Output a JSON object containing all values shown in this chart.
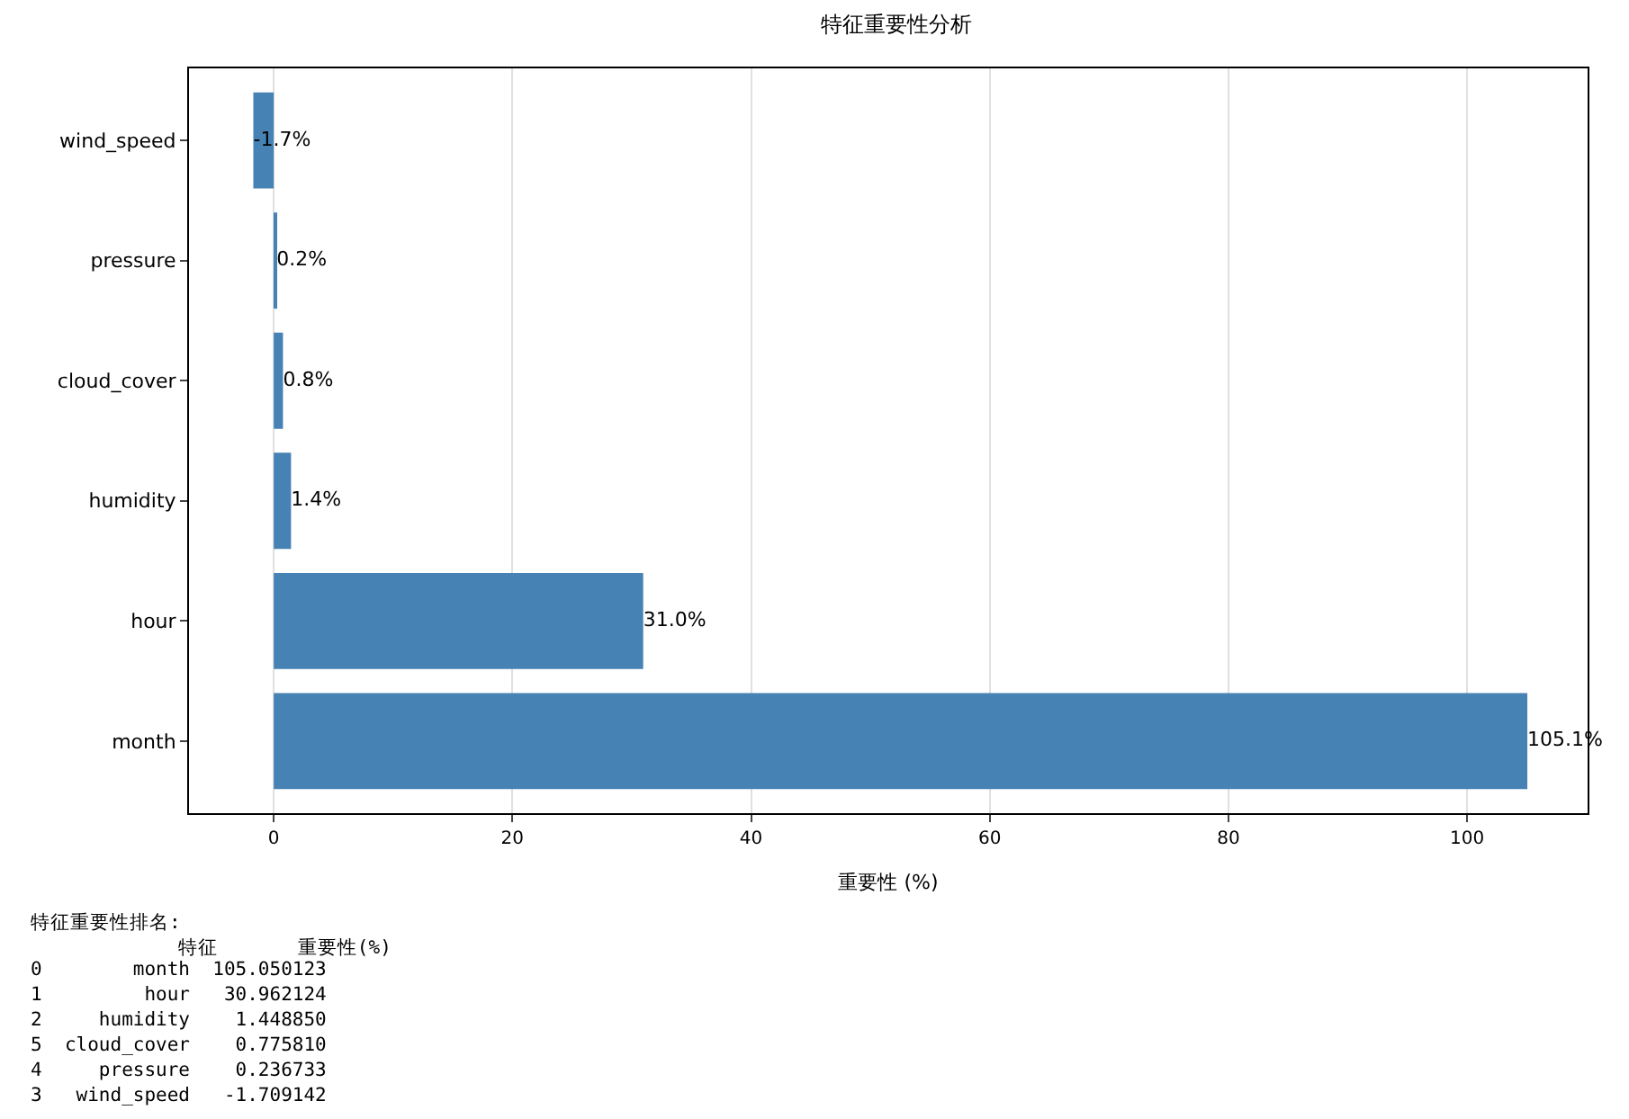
{
  "chart_data": {
    "type": "bar",
    "orientation": "horizontal",
    "title": "特征重要性分析",
    "xlabel": "重要性 (%)",
    "categories": [
      "wind_speed",
      "pressure",
      "cloud_cover",
      "humidity",
      "hour",
      "month"
    ],
    "values": [
      -1.709142,
      0.236733,
      0.77581,
      1.44885,
      30.962124,
      105.050123
    ],
    "value_labels": [
      "-1.7%",
      "0.2%",
      "0.8%",
      "1.4%",
      "31.0%",
      "105.1%"
    ],
    "color": "#4682b4",
    "xlim": [
      -7.1,
      110.1
    ],
    "xticks": [
      0,
      20,
      40,
      60,
      80,
      100
    ],
    "grid": "x",
    "annotations": [
      "特征重要性排名:",
      "             特征       重要性(%)",
      "0        month  105.050123",
      "1         hour   30.962124",
      "2     humidity    1.448850",
      "5  cloud_cover    0.775810",
      "4     pressure    0.236733",
      "3   wind_speed   -1.709142"
    ]
  }
}
